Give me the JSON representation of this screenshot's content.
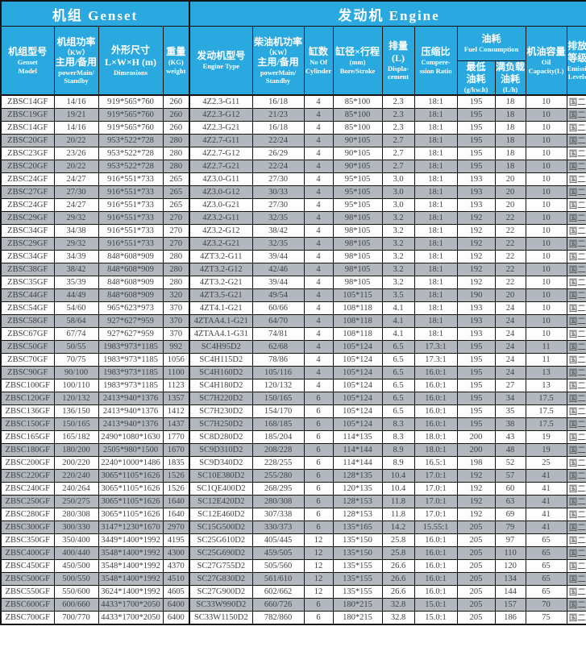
{
  "colors": {
    "header_bg": "#29a9e0",
    "header_text": "#ffffff",
    "grid_line": "#141414",
    "alt_row_bg": "#b2b8bd",
    "row_bg": "#fdfdfd",
    "data_text": "#3e4346"
  },
  "header": {
    "genset_group": "机组 Genset",
    "engine_group": "发动机 Engine",
    "cols": [
      {
        "id": "model",
        "lines": [
          "机组型号",
          "Genset",
          "Model"
        ]
      },
      {
        "id": "genset-power",
        "lines": [
          "机组功率",
          "（KW）",
          "主用/备用",
          "powerMain/",
          "Standby"
        ]
      },
      {
        "id": "dimensions",
        "lines": [
          "外形尺寸",
          "L×W×H (m)",
          "Dimensions"
        ]
      },
      {
        "id": "weight",
        "lines": [
          "重量",
          "(KG)",
          "weight"
        ]
      },
      {
        "id": "engine-type",
        "lines": [
          "发动机型号",
          "Engine Type"
        ]
      },
      {
        "id": "engine-power",
        "lines": [
          "柴油机功率",
          "（KW）",
          "主用/备用",
          "powerMain/",
          "Standby"
        ]
      },
      {
        "id": "cylinders",
        "lines": [
          "缸数",
          "No Of",
          "Cylinder"
        ]
      },
      {
        "id": "bore-stroke",
        "lines": [
          "缸径×行程",
          "(mm)",
          "Bore/Stroke"
        ]
      },
      {
        "id": "displacement",
        "lines": [
          "排量(L)",
          "Displa-",
          "cement"
        ]
      },
      {
        "id": "compression",
        "lines": [
          "压缩比",
          "Compere-",
          "ssion Ratio"
        ]
      }
    ],
    "fuel_group": {
      "id": "fuel-group",
      "lines": [
        "油耗",
        "Fuel Consumption"
      ]
    },
    "fuel_cols": [
      {
        "id": "min-fuel",
        "lines": [
          "最低",
          "油耗",
          "(g/kw.h)"
        ]
      },
      {
        "id": "full-load-fuel",
        "lines": [
          "满负载",
          "油耗",
          "(L/h)"
        ]
      }
    ],
    "tail_cols": [
      {
        "id": "oil-capacity",
        "lines": [
          "机油容量",
          "Oil",
          "Capacity(L)"
        ]
      },
      {
        "id": "emission",
        "lines": [
          "排放",
          "等级",
          "Emission",
          "Levels"
        ]
      }
    ]
  },
  "column_ids": [
    "model",
    "genset-power",
    "dimensions",
    "weight",
    "engine-type",
    "engine-power",
    "cylinders",
    "bore-stroke",
    "displacement",
    "compression",
    "min-fuel",
    "full-load-fuel",
    "oil-capacity",
    "emission"
  ],
  "rows": [
    [
      "ZBSC14GF",
      "14/16",
      "919*565*760",
      "260",
      "4Z2.3-G11",
      "16/18",
      "4",
      "85*100",
      "2.3",
      "18:1",
      "195",
      "18",
      "10",
      "国二"
    ],
    [
      "ZBSC19GF",
      "19/21",
      "919*565*760",
      "260",
      "4Z2.3-G12",
      "21/23",
      "4",
      "85*100",
      "2.3",
      "18:1",
      "195",
      "18",
      "10",
      "国二"
    ],
    [
      "ZBSC14GF",
      "14/16",
      "919*565*760",
      "260",
      "4Z2.3-G21",
      "16/18",
      "4",
      "85*100",
      "2.3",
      "18:1",
      "195",
      "18",
      "10",
      "国二"
    ],
    [
      "ZBSC20GF",
      "20/22",
      "953*522*728",
      "280",
      "4Z2.7-G11",
      "22/24",
      "4",
      "90*105",
      "2.7",
      "18:1",
      "195",
      "18",
      "10",
      "国二"
    ],
    [
      "ZBSC23GF",
      "23/26",
      "953*522*728",
      "280",
      "4Z2.7-G12",
      "26/29",
      "4",
      "90*105",
      "2.7",
      "18:1",
      "195",
      "18",
      "10",
      "国二"
    ],
    [
      "ZBSC20GF",
      "20/22",
      "953*522*728",
      "280",
      "4Z2.7-G21",
      "22/24",
      "4",
      "90*105",
      "2.7",
      "18:1",
      "195",
      "18",
      "10",
      "国二"
    ],
    [
      "ZBSC24GF",
      "24/27",
      "916*551*733",
      "265",
      "4Z3.0-G11",
      "27/30",
      "4",
      "95*105",
      "3.0",
      "18:1",
      "193",
      "20",
      "10",
      "国二"
    ],
    [
      "ZBSC27GF",
      "27/30",
      "916*551*733",
      "265",
      "4Z3.0-G12",
      "30/33",
      "4",
      "95*105",
      "3.0",
      "18:1",
      "193",
      "20",
      "10",
      "国二"
    ],
    [
      "ZBSC24GF",
      "24/27",
      "916*551*733",
      "265",
      "4Z3.0-G21",
      "27/30",
      "4",
      "95*105",
      "3.0",
      "18:1",
      "193",
      "20",
      "10",
      "国二"
    ],
    [
      "ZBSC29GF",
      "29/32",
      "916*551*733",
      "270",
      "4Z3.2-G11",
      "32/35",
      "4",
      "98*105",
      "3.2",
      "18:1",
      "192",
      "22",
      "10",
      "国二"
    ],
    [
      "ZBSC34GF",
      "34/38",
      "916*551*733",
      "270",
      "4Z3.2-G12",
      "38/42",
      "4",
      "98*105",
      "3.2",
      "18:1",
      "192",
      "22",
      "10",
      "国二"
    ],
    [
      "ZBSC29GF",
      "29/32",
      "916*551*733",
      "270",
      "4Z3.2-G21",
      "32/35",
      "4",
      "98*105",
      "3.2",
      "18:1",
      "192",
      "22",
      "10",
      "国二"
    ],
    [
      "ZBSC34GF",
      "34/39",
      "848*608*909",
      "280",
      "4ZT3.2-G11",
      "39/44",
      "4",
      "98*105",
      "3.2",
      "18:1",
      "192",
      "22",
      "10",
      "国二"
    ],
    [
      "ZBSC38GF",
      "38/42",
      "848*608*909",
      "280",
      "4ZT3.2-G12",
      "42/46",
      "4",
      "98*105",
      "3.2",
      "18:1",
      "192",
      "22",
      "10",
      "国二"
    ],
    [
      "ZBSC35GF",
      "35/39",
      "848*608*909",
      "280",
      "4ZT3.2-G21",
      "39/44",
      "4",
      "98*105",
      "3.2",
      "18:1",
      "192",
      "22",
      "10",
      "国二"
    ],
    [
      "ZBSC44GF",
      "44/49",
      "848*608*909",
      "320",
      "4ZT3.5-G21",
      "49/54",
      "4",
      "105*115",
      "3.5",
      "18:1",
      "190",
      "20",
      "10",
      "国二"
    ],
    [
      "ZBSC54GF",
      "54/60",
      "965*623*973",
      "370",
      "4ZT4.1-G21",
      "60/66",
      "4",
      "108*118",
      "4.1",
      "18:1",
      "193",
      "24",
      "10",
      "国二"
    ],
    [
      "ZBSC58GF",
      "58/64",
      "927*627*959",
      "370",
      "4ZTAA4.1-G21",
      "64/70",
      "4",
      "108*118",
      "4.1",
      "18:1",
      "193",
      "24",
      "10",
      "国二"
    ],
    [
      "ZBSC67GF",
      "67/74",
      "927*627*959",
      "370",
      "4ZTAA4.1-G31",
      "74/81",
      "4",
      "108*118",
      "4.1",
      "18:1",
      "193",
      "24",
      "10",
      "国二"
    ],
    [
      "ZBSC50GF",
      "50/55",
      "1983*973*1185",
      "992",
      "SC4H95D2",
      "62/68",
      "4",
      "105*124",
      "6.5",
      "17.3:1",
      "195",
      "24",
      "11",
      "国二"
    ],
    [
      "ZBSC70GF",
      "70/75",
      "1983*973*1185",
      "1056",
      "SC4H115D2",
      "78/86",
      "4",
      "105*124",
      "6.5",
      "17.3:1",
      "195",
      "24",
      "11",
      "国二"
    ],
    [
      "ZBSC90GF",
      "90/100",
      "1983*973*1185",
      "1100",
      "SC4H160D2",
      "105/116",
      "4",
      "105*124",
      "6.5",
      "16.0:1",
      "195",
      "24",
      "13",
      "国二"
    ],
    [
      "ZBSC100GF",
      "100/110",
      "1983*973*1185",
      "1123",
      "SC4H180D2",
      "120/132",
      "4",
      "105*124",
      "6.5",
      "16.0:1",
      "195",
      "27",
      "13",
      "国二"
    ],
    [
      "ZBSC120GF",
      "120/132",
      "2413*940*1376",
      "1357",
      "SC7H220D2",
      "150/165",
      "6",
      "105*124",
      "6.5",
      "16.0:1",
      "195",
      "34",
      "17.5",
      "国二"
    ],
    [
      "ZBSC136GF",
      "136/150",
      "2413*940*1376",
      "1412",
      "SC7H230D2",
      "154/170",
      "6",
      "105*124",
      "6.5",
      "16.0:1",
      "195",
      "35",
      "17.5",
      "国二"
    ],
    [
      "ZBSC150GF",
      "150/165",
      "2413*940*1376",
      "1437",
      "SC7H250D2",
      "168/185",
      "6",
      "105*124",
      "8.3",
      "16.0:1",
      "195",
      "38",
      "17.5",
      "国二"
    ],
    [
      "ZBSC165GF",
      "165/182",
      "2490*1080*1630",
      "1770",
      "SC8D280D2",
      "185/204",
      "6",
      "114*135",
      "8.3",
      "18.0:1",
      "200",
      "43",
      "19",
      "国二"
    ],
    [
      "ZBSC180GF",
      "180/200",
      "2505*980*1500",
      "1670",
      "SC9D310D2",
      "208/228",
      "6",
      "114*144",
      "8.9",
      "18.0:1",
      "200",
      "48",
      "19",
      "国二"
    ],
    [
      "ZBSC200GF",
      "200/220",
      "2240*1000*1486",
      "1835",
      "SC9D340D2",
      "228/255",
      "6",
      "114*144",
      "8.9",
      "16.5:1",
      "198",
      "52",
      "25",
      "国二"
    ],
    [
      "ZBSC220GF",
      "220/240",
      "3065*1105*1626",
      "1526",
      "SC10E380D2",
      "255/280",
      "6",
      "128*135",
      "10.4",
      "17.0:1",
      "192",
      "57",
      "41",
      "国二"
    ],
    [
      "ZBSC240GF",
      "240/264",
      "3065*1105*1626",
      "1526",
      "SC1QE400D2",
      "268/295",
      "6",
      "120*135",
      "10.4",
      "17.0:1",
      "192",
      "60",
      "41",
      "国二"
    ],
    [
      "ZBSC250GF",
      "250/275",
      "3065*1105*1626",
      "1640",
      "SC12E420D2",
      "280/308",
      "6",
      "128*153",
      "11.8",
      "17.0:1",
      "192",
      "63",
      "41",
      "国二"
    ],
    [
      "ZBSC280GF",
      "280/308",
      "3065*1105*1626",
      "1640",
      "SC12E460D2",
      "307/338",
      "6",
      "128*153",
      "11.8",
      "17.0:1",
      "192",
      "69",
      "41",
      "国二"
    ],
    [
      "ZBSC300GF",
      "300/330",
      "3147*1230*1670",
      "2970",
      "SC15G500D2",
      "330/373",
      "6",
      "135*165",
      "14.2",
      "15.55:1",
      "205",
      "79",
      "41",
      "国二"
    ],
    [
      "ZBSC350GF",
      "350/400",
      "3449*1400*1992",
      "4195",
      "SC25G610D2",
      "405/445",
      "12",
      "135*150",
      "25.8",
      "16.0:1",
      "205",
      "97",
      "65",
      "国二"
    ],
    [
      "ZBSC400GF",
      "400/440",
      "3548*1400*1992",
      "4300",
      "SC25G690D2",
      "459/505",
      "12",
      "135*150",
      "25.8",
      "16.0:1",
      "205",
      "110",
      "65",
      "国二"
    ],
    [
      "ZBSC450GF",
      "450/500",
      "3548*1400*1992",
      "4370",
      "SC27G755D2",
      "505/560",
      "12",
      "135*155",
      "26.6",
      "16.0:1",
      "205",
      "120",
      "65",
      "国二"
    ],
    [
      "ZBSC500GF",
      "500/550",
      "3548*1400*1992",
      "4510",
      "SC27G830D2",
      "561/610",
      "12",
      "135*155",
      "26.6",
      "16.0:1",
      "205",
      "134",
      "65",
      "国二"
    ],
    [
      "ZBSC550GF",
      "550/600",
      "3624*1400*1992",
      "4605",
      "SC27G900D2",
      "602/662",
      "12",
      "135*155",
      "26.6",
      "16.0:1",
      "205",
      "144",
      "65",
      "国二"
    ],
    [
      "ZBSC600GF",
      "600/660",
      "4433*1700*2050",
      "6400",
      "SC33W990D2",
      "660/726",
      "6",
      "180*215",
      "32.8",
      "15.0:1",
      "205",
      "157",
      "70",
      "国二"
    ],
    [
      "ZBSC700GF",
      "700/770",
      "4433*1700*2050",
      "6400",
      "SC33W1150D2",
      "782/860",
      "6",
      "180*215",
      "32.8",
      "15.0:1",
      "205",
      "186",
      "75",
      "国二"
    ]
  ]
}
